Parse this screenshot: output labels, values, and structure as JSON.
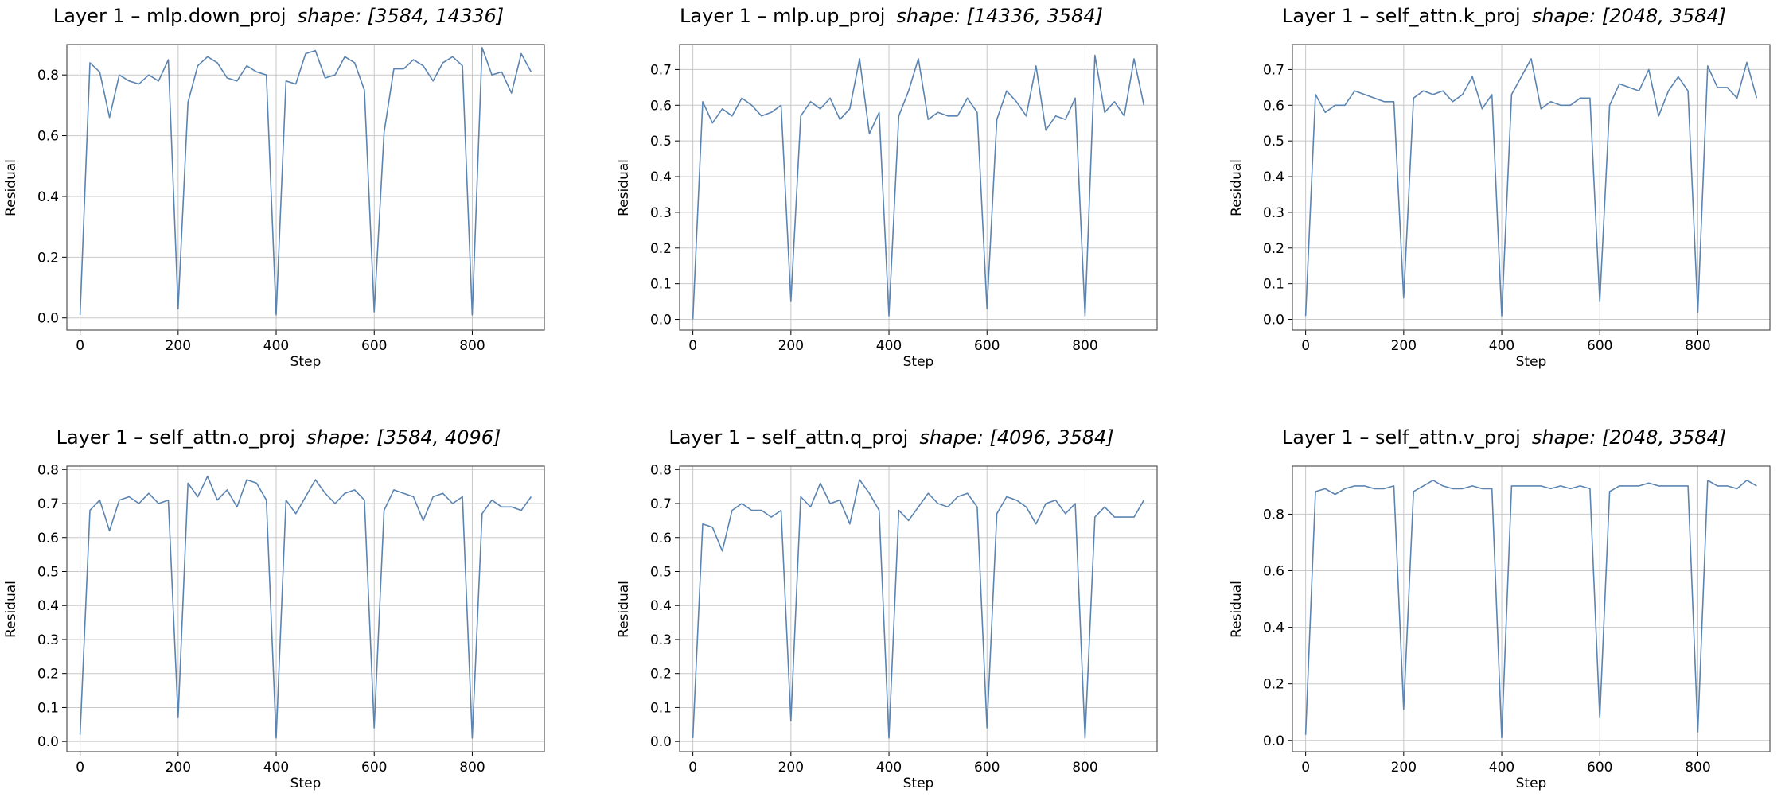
{
  "colors": {
    "line": "#5b84b1",
    "grid": "#c8c8c8",
    "frame": "#555555"
  },
  "chart_data": [
    {
      "type": "line",
      "title": "Layer 1 – mlp.down_proj",
      "title_shape": "shape: [3584, 14336]",
      "xlabel": "Step",
      "ylabel": "Residual",
      "xlim": [
        -27,
        947
      ],
      "ylim": [
        -0.04,
        0.9
      ],
      "xticks": [
        0,
        200,
        400,
        600,
        800
      ],
      "yticks": [
        0.0,
        0.2,
        0.4,
        0.6,
        0.8
      ],
      "ytick_labels": [
        "0.0",
        "0.2",
        "0.4",
        "0.6",
        "0.8"
      ],
      "grid": true,
      "x": [
        0,
        20,
        40,
        60,
        80,
        100,
        120,
        140,
        160,
        180,
        200,
        220,
        240,
        260,
        280,
        300,
        320,
        340,
        360,
        380,
        400,
        420,
        440,
        460,
        480,
        500,
        520,
        540,
        560,
        580,
        600,
        620,
        640,
        660,
        680,
        700,
        720,
        740,
        760,
        780,
        800,
        820,
        840,
        860,
        880,
        900,
        920
      ],
      "values": [
        0.01,
        0.84,
        0.81,
        0.66,
        0.8,
        0.78,
        0.77,
        0.8,
        0.78,
        0.85,
        0.03,
        0.71,
        0.83,
        0.86,
        0.84,
        0.79,
        0.78,
        0.83,
        0.81,
        0.8,
        0.01,
        0.78,
        0.77,
        0.87,
        0.88,
        0.79,
        0.8,
        0.86,
        0.84,
        0.75,
        0.02,
        0.61,
        0.82,
        0.82,
        0.85,
        0.83,
        0.78,
        0.84,
        0.86,
        0.83,
        0.01,
        0.89,
        0.8,
        0.81,
        0.74,
        0.87,
        0.81
      ]
    },
    {
      "type": "line",
      "title": "Layer 1 – mlp.up_proj",
      "title_shape": "shape: [14336, 3584]",
      "xlabel": "Step",
      "ylabel": "Residual",
      "xlim": [
        -27,
        947
      ],
      "ylim": [
        -0.03,
        0.77
      ],
      "xticks": [
        0,
        200,
        400,
        600,
        800
      ],
      "yticks": [
        0.0,
        0.1,
        0.2,
        0.3,
        0.4,
        0.5,
        0.6,
        0.7
      ],
      "ytick_labels": [
        "0.0",
        "0.1",
        "0.2",
        "0.3",
        "0.4",
        "0.5",
        "0.6",
        "0.7"
      ],
      "grid": true,
      "x": [
        0,
        20,
        40,
        60,
        80,
        100,
        120,
        140,
        160,
        180,
        200,
        220,
        240,
        260,
        280,
        300,
        320,
        340,
        360,
        380,
        400,
        420,
        440,
        460,
        480,
        500,
        520,
        540,
        560,
        580,
        600,
        620,
        640,
        660,
        680,
        700,
        720,
        740,
        760,
        780,
        800,
        820,
        840,
        860,
        880,
        900,
        920
      ],
      "values": [
        0.0,
        0.61,
        0.55,
        0.59,
        0.57,
        0.62,
        0.6,
        0.57,
        0.58,
        0.6,
        0.05,
        0.57,
        0.61,
        0.59,
        0.62,
        0.56,
        0.59,
        0.73,
        0.52,
        0.58,
        0.01,
        0.57,
        0.64,
        0.73,
        0.56,
        0.58,
        0.57,
        0.57,
        0.62,
        0.58,
        0.03,
        0.56,
        0.64,
        0.61,
        0.57,
        0.71,
        0.53,
        0.57,
        0.56,
        0.62,
        0.01,
        0.74,
        0.58,
        0.61,
        0.57,
        0.73,
        0.6
      ]
    },
    {
      "type": "line",
      "title": "Layer 1 – self_attn.k_proj",
      "title_shape": "shape: [2048, 3584]",
      "xlabel": "Step",
      "ylabel": "Residual",
      "xlim": [
        -27,
        947
      ],
      "ylim": [
        -0.03,
        0.77
      ],
      "xticks": [
        0,
        200,
        400,
        600,
        800
      ],
      "yticks": [
        0.0,
        0.1,
        0.2,
        0.3,
        0.4,
        0.5,
        0.6,
        0.7
      ],
      "ytick_labels": [
        "0.0",
        "0.1",
        "0.2",
        "0.3",
        "0.4",
        "0.5",
        "0.6",
        "0.7"
      ],
      "grid": true,
      "x": [
        0,
        20,
        40,
        60,
        80,
        100,
        120,
        140,
        160,
        180,
        200,
        220,
        240,
        260,
        280,
        300,
        320,
        340,
        360,
        380,
        400,
        420,
        440,
        460,
        480,
        500,
        520,
        540,
        560,
        580,
        600,
        620,
        640,
        660,
        680,
        700,
        720,
        740,
        760,
        780,
        800,
        820,
        840,
        860,
        880,
        900,
        920
      ],
      "values": [
        0.01,
        0.63,
        0.58,
        0.6,
        0.6,
        0.64,
        0.63,
        0.62,
        0.61,
        0.61,
        0.06,
        0.62,
        0.64,
        0.63,
        0.64,
        0.61,
        0.63,
        0.68,
        0.59,
        0.63,
        0.01,
        0.63,
        0.68,
        0.73,
        0.59,
        0.61,
        0.6,
        0.6,
        0.62,
        0.62,
        0.05,
        0.6,
        0.66,
        0.65,
        0.64,
        0.7,
        0.57,
        0.64,
        0.68,
        0.64,
        0.02,
        0.71,
        0.65,
        0.65,
        0.62,
        0.72,
        0.62
      ]
    },
    {
      "type": "line",
      "title": "Layer 1 – self_attn.o_proj",
      "title_shape": "shape: [3584, 4096]",
      "xlabel": "Step",
      "ylabel": "Residual",
      "xlim": [
        -27,
        947
      ],
      "ylim": [
        -0.03,
        0.81
      ],
      "xticks": [
        0,
        200,
        400,
        600,
        800
      ],
      "yticks": [
        0.0,
        0.1,
        0.2,
        0.3,
        0.4,
        0.5,
        0.6,
        0.7,
        0.8
      ],
      "ytick_labels": [
        "0.0",
        "0.1",
        "0.2",
        "0.3",
        "0.4",
        "0.5",
        "0.6",
        "0.7",
        "0.8"
      ],
      "grid": true,
      "x": [
        0,
        20,
        40,
        60,
        80,
        100,
        120,
        140,
        160,
        180,
        200,
        220,
        240,
        260,
        280,
        300,
        320,
        340,
        360,
        380,
        400,
        420,
        440,
        460,
        480,
        500,
        520,
        540,
        560,
        580,
        600,
        620,
        640,
        660,
        680,
        700,
        720,
        740,
        760,
        780,
        800,
        820,
        840,
        860,
        880,
        900,
        920
      ],
      "values": [
        0.02,
        0.68,
        0.71,
        0.62,
        0.71,
        0.72,
        0.7,
        0.73,
        0.7,
        0.71,
        0.07,
        0.76,
        0.72,
        0.78,
        0.71,
        0.74,
        0.69,
        0.77,
        0.76,
        0.71,
        0.01,
        0.71,
        0.67,
        0.72,
        0.77,
        0.73,
        0.7,
        0.73,
        0.74,
        0.71,
        0.04,
        0.68,
        0.74,
        0.73,
        0.72,
        0.65,
        0.72,
        0.73,
        0.7,
        0.72,
        0.01,
        0.67,
        0.71,
        0.69,
        0.69,
        0.68,
        0.72
      ]
    },
    {
      "type": "line",
      "title": "Layer 1 – self_attn.q_proj",
      "title_shape": "shape: [4096, 3584]",
      "xlabel": "Step",
      "ylabel": "Residual",
      "xlim": [
        -27,
        947
      ],
      "ylim": [
        -0.03,
        0.81
      ],
      "xticks": [
        0,
        200,
        400,
        600,
        800
      ],
      "yticks": [
        0.0,
        0.1,
        0.2,
        0.3,
        0.4,
        0.5,
        0.6,
        0.7,
        0.8
      ],
      "ytick_labels": [
        "0.0",
        "0.1",
        "0.2",
        "0.3",
        "0.4",
        "0.5",
        "0.6",
        "0.7",
        "0.8"
      ],
      "grid": true,
      "x": [
        0,
        20,
        40,
        60,
        80,
        100,
        120,
        140,
        160,
        180,
        200,
        220,
        240,
        260,
        280,
        300,
        320,
        340,
        360,
        380,
        400,
        420,
        440,
        460,
        480,
        500,
        520,
        540,
        560,
        580,
        600,
        620,
        640,
        660,
        680,
        700,
        720,
        740,
        760,
        780,
        800,
        820,
        840,
        860,
        880,
        900,
        920
      ],
      "values": [
        0.01,
        0.64,
        0.63,
        0.56,
        0.68,
        0.7,
        0.68,
        0.68,
        0.66,
        0.68,
        0.06,
        0.72,
        0.69,
        0.76,
        0.7,
        0.71,
        0.64,
        0.77,
        0.73,
        0.68,
        0.01,
        0.68,
        0.65,
        0.69,
        0.73,
        0.7,
        0.69,
        0.72,
        0.73,
        0.69,
        0.04,
        0.67,
        0.72,
        0.71,
        0.69,
        0.64,
        0.7,
        0.71,
        0.67,
        0.7,
        0.01,
        0.66,
        0.69,
        0.66,
        0.66,
        0.66,
        0.71
      ]
    },
    {
      "type": "line",
      "title": "Layer 1 – self_attn.v_proj",
      "title_shape": "shape: [2048, 3584]",
      "xlabel": "Step",
      "ylabel": "Residual",
      "xlim": [
        -27,
        947
      ],
      "ylim": [
        -0.04,
        0.97
      ],
      "xticks": [
        0,
        200,
        400,
        600,
        800
      ],
      "yticks": [
        0.0,
        0.2,
        0.4,
        0.6,
        0.8
      ],
      "ytick_labels": [
        "0.0",
        "0.2",
        "0.4",
        "0.6",
        "0.8"
      ],
      "grid": true,
      "x": [
        0,
        20,
        40,
        60,
        80,
        100,
        120,
        140,
        160,
        180,
        200,
        220,
        240,
        260,
        280,
        300,
        320,
        340,
        360,
        380,
        400,
        420,
        440,
        460,
        480,
        500,
        520,
        540,
        560,
        580,
        600,
        620,
        640,
        660,
        680,
        700,
        720,
        740,
        760,
        780,
        800,
        820,
        840,
        860,
        880,
        900,
        920
      ],
      "values": [
        0.02,
        0.88,
        0.89,
        0.87,
        0.89,
        0.9,
        0.9,
        0.89,
        0.89,
        0.9,
        0.11,
        0.88,
        0.9,
        0.92,
        0.9,
        0.89,
        0.89,
        0.9,
        0.89,
        0.89,
        0.01,
        0.9,
        0.9,
        0.9,
        0.9,
        0.89,
        0.9,
        0.89,
        0.9,
        0.89,
        0.08,
        0.88,
        0.9,
        0.9,
        0.9,
        0.91,
        0.9,
        0.9,
        0.9,
        0.9,
        0.03,
        0.92,
        0.9,
        0.9,
        0.89,
        0.92,
        0.9
      ]
    }
  ]
}
